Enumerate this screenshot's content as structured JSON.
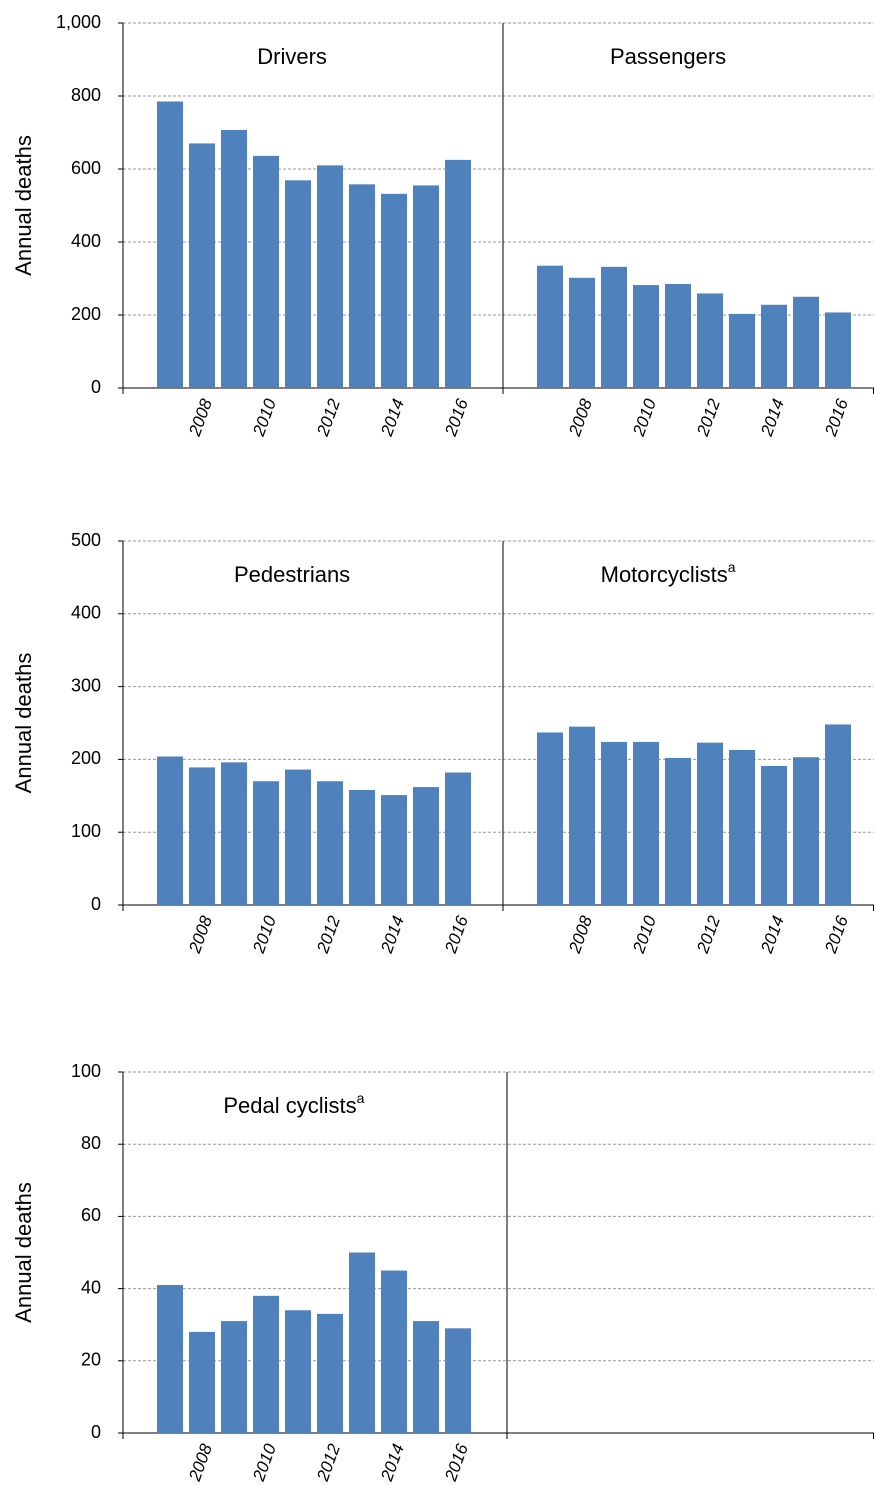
{
  "chart_data": [
    {
      "type": "bar",
      "ylabel": "Annual  deaths",
      "color": "#4f81bd",
      "grid": true,
      "ylim": [
        0,
        1000
      ],
      "yticks": [
        0,
        200,
        400,
        600,
        800,
        {
          "value": 1000,
          "label": "1,000"
        }
      ],
      "categories": [
        null,
        "2008",
        null,
        "2010",
        null,
        "2012",
        null,
        "2014",
        null,
        "2016"
      ],
      "panels": [
        {
          "title": "Drivers",
          "values": [
            785,
            670,
            707,
            636,
            569,
            610,
            558,
            532,
            555,
            625
          ]
        },
        {
          "title": "Passengers",
          "values": [
            335,
            302,
            332,
            282,
            285,
            259,
            203,
            228,
            250,
            207
          ]
        }
      ]
    },
    {
      "type": "bar",
      "ylabel": "Annual  deaths",
      "color": "#4f81bd",
      "grid": true,
      "ylim": [
        0,
        500
      ],
      "yticks": [
        0,
        100,
        200,
        300,
        400,
        500
      ],
      "categories": [
        null,
        "2008",
        null,
        "2010",
        null,
        "2012",
        null,
        "2014",
        null,
        "2016"
      ],
      "panels": [
        {
          "title": "Pedestrians",
          "values": [
            204,
            189,
            196,
            170,
            186,
            170,
            158,
            151,
            162,
            182
          ]
        },
        {
          "title": "Motorcyclists",
          "footnote": "a",
          "values": [
            237,
            245,
            224,
            224,
            202,
            223,
            213,
            191,
            203,
            248
          ]
        }
      ]
    },
    {
      "type": "bar",
      "ylabel": "Annual  deaths",
      "color": "#4f81bd",
      "grid": true,
      "ylim": [
        0,
        100
      ],
      "yticks": [
        0,
        20,
        40,
        60,
        80,
        100
      ],
      "categories": [
        null,
        "2008",
        null,
        "2010",
        null,
        "2012",
        null,
        "2014",
        null,
        "2016"
      ],
      "panels": [
        {
          "title": "Pedal cyclists",
          "footnote": "a",
          "values": [
            41,
            28,
            31,
            38,
            34,
            33,
            50,
            45,
            31,
            29
          ]
        }
      ]
    }
  ]
}
